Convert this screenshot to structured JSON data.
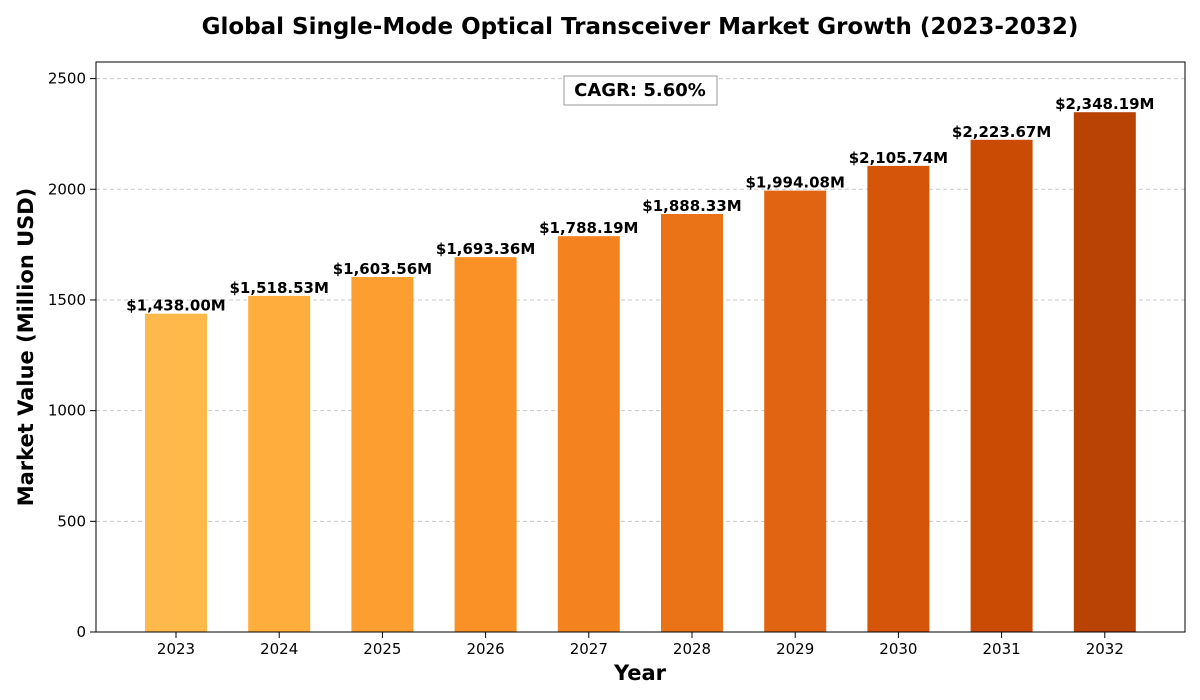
{
  "chart_data": {
    "type": "bar",
    "title": "Global Single-Mode Optical Transceiver Market Growth (2023-2032)",
    "xlabel": "Year",
    "ylabel": "Market Value (Million USD)",
    "categories": [
      "2023",
      "2024",
      "2025",
      "2026",
      "2027",
      "2028",
      "2029",
      "2030",
      "2031",
      "2032"
    ],
    "values": [
      1438.0,
      1518.53,
      1603.56,
      1693.36,
      1788.19,
      1888.33,
      1994.08,
      2105.74,
      2223.67,
      2348.19
    ],
    "data_labels": [
      "$1,438.00M",
      "$1,518.53M",
      "$1,603.56M",
      "$1,693.36M",
      "$1,788.19M",
      "$1,888.33M",
      "$1,994.08M",
      "$2,105.74M",
      "$2,223.67M",
      "$2,348.19M"
    ],
    "colors": [
      "#ffb84a",
      "#ffad3c",
      "#fd9f30",
      "#f99126",
      "#f3821f",
      "#ea7217",
      "#e06412",
      "#d5550b",
      "#c94b04",
      "#b94205"
    ],
    "ylim": [
      0,
      2575
    ],
    "yticks": [
      0,
      500,
      1000,
      1500,
      2000,
      2500
    ],
    "grid": "y-dashed",
    "annotation": "CAGR: 5.60%",
    "annotation_placement": "top-center"
  }
}
